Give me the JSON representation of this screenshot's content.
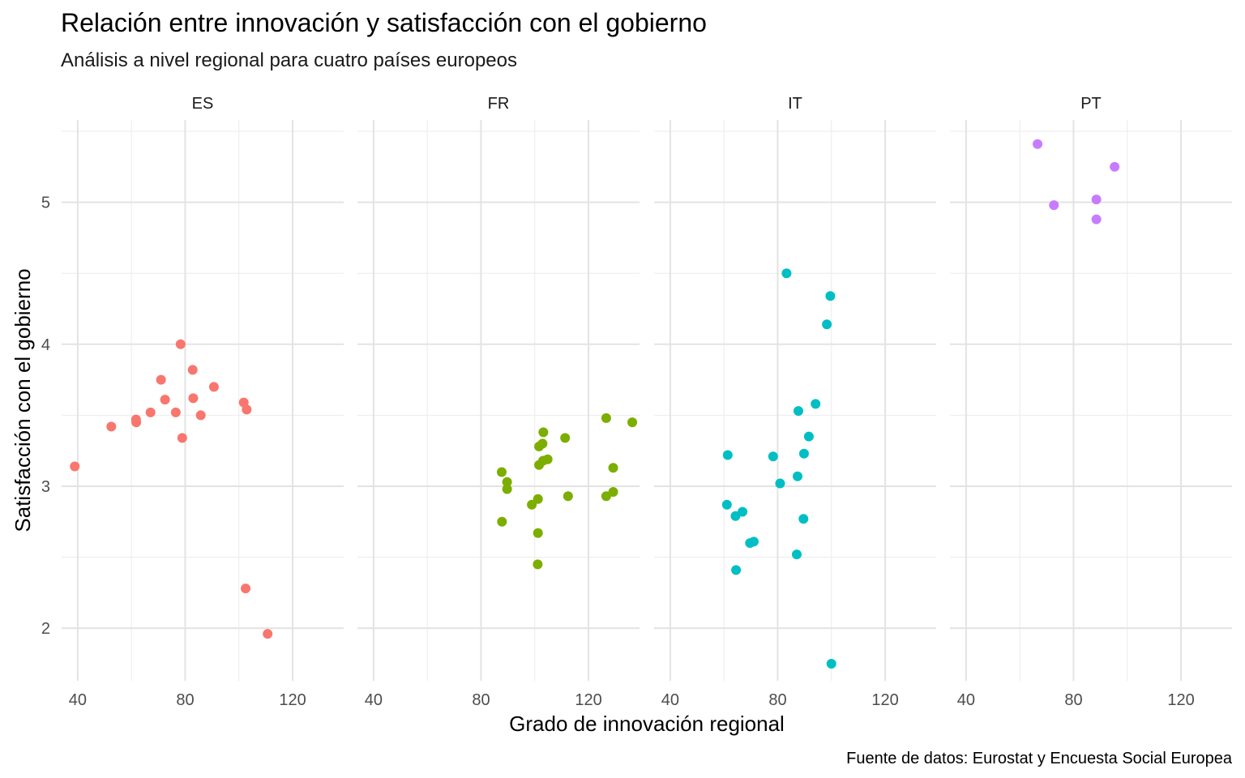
{
  "chart_data": {
    "type": "scatter",
    "title": "Relación entre innovación y satisfacción con el gobierno",
    "subtitle": "Análisis a nivel regional para cuatro países europeos",
    "xlabel": "Grado de innovación regional",
    "ylabel": "Satisfacción con el gobierno",
    "caption": "Fuente de datos: Eurostat y Encuesta Social Europea",
    "xlim": [
      34,
      139
    ],
    "ylim": [
      1.63,
      5.58
    ],
    "x_ticks": [
      40,
      80,
      120
    ],
    "x_tick_labels": [
      "40",
      "80",
      "120"
    ],
    "y_ticks": [
      2,
      3,
      4,
      5
    ],
    "y_tick_labels": [
      "2",
      "3",
      "4",
      "5"
    ],
    "grid": true,
    "facets": [
      "ES",
      "FR",
      "IT",
      "PT"
    ],
    "series": [
      {
        "name": "ES",
        "color": "#F8766D",
        "points": [
          [
            38.9,
            3.14
          ],
          [
            52.5,
            3.42
          ],
          [
            61.7,
            3.47
          ],
          [
            61.8,
            3.45
          ],
          [
            67.1,
            3.52
          ],
          [
            71.0,
            3.75
          ],
          [
            72.5,
            3.61
          ],
          [
            76.5,
            3.52
          ],
          [
            78.3,
            4.0
          ],
          [
            78.9,
            3.34
          ],
          [
            82.8,
            3.82
          ],
          [
            83.0,
            3.62
          ],
          [
            85.8,
            3.5
          ],
          [
            90.7,
            3.7
          ],
          [
            101.8,
            3.59
          ],
          [
            102.9,
            3.54
          ],
          [
            102.5,
            2.28
          ],
          [
            110.7,
            1.96
          ]
        ]
      },
      {
        "name": "FR",
        "color": "#7CAE00",
        "points": [
          [
            87.7,
            3.1
          ],
          [
            89.7,
            3.03
          ],
          [
            89.7,
            2.98
          ],
          [
            87.8,
            2.75
          ],
          [
            98.9,
            2.87
          ],
          [
            101.2,
            2.91
          ],
          [
            101.2,
            2.67
          ],
          [
            101.1,
            2.45
          ],
          [
            101.6,
            3.15
          ],
          [
            103.1,
            3.18
          ],
          [
            104.8,
            3.19
          ],
          [
            101.6,
            3.28
          ],
          [
            102.9,
            3.3
          ],
          [
            103.2,
            3.38
          ],
          [
            111.3,
            3.34
          ],
          [
            112.4,
            2.93
          ],
          [
            126.6,
            3.48
          ],
          [
            126.6,
            2.93
          ],
          [
            129.2,
            2.96
          ],
          [
            129.2,
            3.13
          ],
          [
            136.3,
            3.45
          ]
        ]
      },
      {
        "name": "IT",
        "color": "#00BFC4",
        "points": [
          [
            83.3,
            4.5
          ],
          [
            99.6,
            4.34
          ],
          [
            98.3,
            4.14
          ],
          [
            94.1,
            3.58
          ],
          [
            87.7,
            3.53
          ],
          [
            91.6,
            3.35
          ],
          [
            61.4,
            3.22
          ],
          [
            78.3,
            3.21
          ],
          [
            89.8,
            3.23
          ],
          [
            87.4,
            3.07
          ],
          [
            80.9,
            3.02
          ],
          [
            61.1,
            2.87
          ],
          [
            64.3,
            2.79
          ],
          [
            66.9,
            2.82
          ],
          [
            89.6,
            2.77
          ],
          [
            69.7,
            2.6
          ],
          [
            71.1,
            2.61
          ],
          [
            87.1,
            2.52
          ],
          [
            64.5,
            2.41
          ],
          [
            100.0,
            1.75
          ]
        ]
      },
      {
        "name": "PT",
        "color": "#C77CFF",
        "points": [
          [
            66.6,
            5.41
          ],
          [
            95.3,
            5.25
          ],
          [
            72.7,
            4.98
          ],
          [
            88.5,
            5.02
          ],
          [
            88.5,
            4.88
          ]
        ]
      }
    ]
  }
}
